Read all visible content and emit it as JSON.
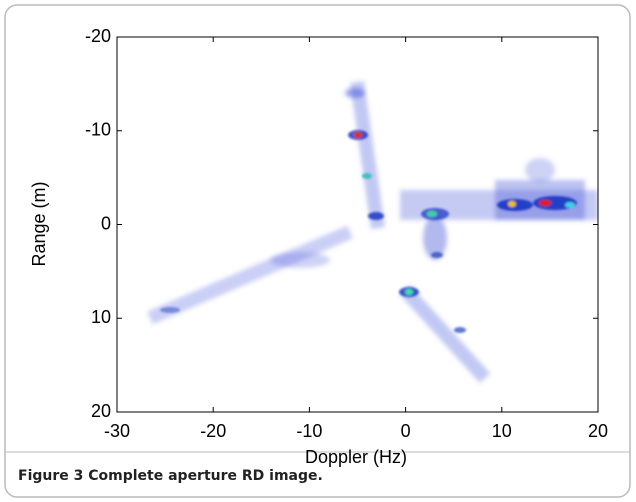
{
  "chart_data": {
    "type": "heatmap",
    "xlabel": "Doppler (Hz)",
    "ylabel": "Range (m)",
    "xlim": [
      -30,
      20
    ],
    "xticks": [
      -30,
      -20,
      -10,
      0,
      10,
      20
    ],
    "ylim": [
      -20,
      20
    ],
    "yticks": [
      -20,
      -10,
      0,
      10,
      20
    ],
    "y_inverted": true,
    "caption": "Figure 3 Complete aperture RD image."
  }
}
